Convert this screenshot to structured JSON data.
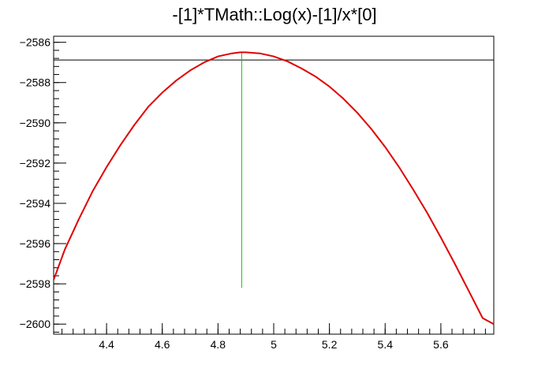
{
  "chart_data": {
    "type": "line",
    "title": "-[1]*TMath::Log(x)-[1]/x*[0]",
    "xlabel": "",
    "ylabel": "",
    "xlim": [
      4.21,
      5.79
    ],
    "ylim": [
      -2600.5,
      -2585.7
    ],
    "x_ticks": [
      4.4,
      4.6,
      4.8,
      5,
      5.2,
      5.4,
      5.6
    ],
    "x_tick_labels": [
      "4.4",
      "4.6",
      "4.8",
      "5",
      "5.2",
      "5.4",
      "5.6"
    ],
    "y_ticks": [
      -2586,
      -2588,
      -2590,
      -2592,
      -2594,
      -2596,
      -2598,
      -2600
    ],
    "y_tick_labels": [
      "−2586",
      "−2588",
      "−2590",
      "−2592",
      "−2594",
      "−2596",
      "−2598",
      "−2600"
    ],
    "grid": false,
    "legend": "none",
    "series": [
      {
        "color": "#e00000",
        "x": [
          4.21,
          4.25,
          4.3,
          4.35,
          4.4,
          4.45,
          4.5,
          4.55,
          4.6,
          4.65,
          4.7,
          4.75,
          4.8,
          4.85,
          4.88,
          4.9,
          4.95,
          5.0,
          5.05,
          5.1,
          5.15,
          5.2,
          5.25,
          5.3,
          5.35,
          5.4,
          5.45,
          5.5,
          5.55,
          5.6,
          5.65,
          5.7,
          5.75,
          5.79
        ],
        "y": [
          -2597.8,
          -2596.3,
          -2594.8,
          -2593.4,
          -2592.2,
          -2591.1,
          -2590.1,
          -2589.2,
          -2588.5,
          -2587.9,
          -2587.4,
          -2587.0,
          -2586.7,
          -2586.55,
          -2586.5,
          -2586.5,
          -2586.55,
          -2586.7,
          -2586.95,
          -2587.3,
          -2587.7,
          -2588.2,
          -2588.8,
          -2589.5,
          -2590.3,
          -2591.2,
          -2592.2,
          -2593.3,
          -2594.45,
          -2595.7,
          -2597.0,
          -2598.35,
          -2599.7,
          -2600.0
        ]
      }
    ],
    "reference_lines": [
      {
        "orientation": "horizontal",
        "y": -2586.88,
        "color": "#000000"
      },
      {
        "orientation": "vertical",
        "x": 4.885,
        "y_from": -2598.2,
        "y_to": -2586.5,
        "color": "#00cc00"
      }
    ]
  }
}
